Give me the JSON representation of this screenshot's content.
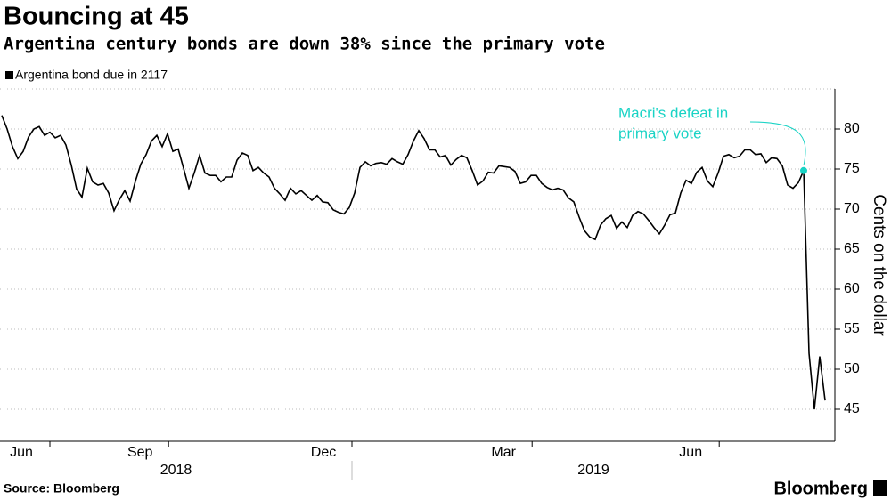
{
  "chart_data": {
    "type": "line",
    "title": "Bouncing at 45",
    "subtitle": "Argentina century bonds are down 38% since the primary vote",
    "y_label": "Cents on the dollar",
    "source": "Source: Bloomberg",
    "brand": "Bloomberg",
    "annotation": {
      "lines": [
        "Macri's defeat in",
        "primary vote"
      ],
      "color": "#19d3c5"
    },
    "year_labels": [
      "2018",
      "2019"
    ],
    "series": [
      {
        "name": "Argentina bond due in 2117",
        "color": "#000000",
        "values": [
          81.7,
          80,
          77.8,
          76.3,
          77.2,
          79,
          80,
          80.3,
          79.2,
          79.6,
          78.9,
          79.2,
          78,
          75.5,
          72.5,
          71.5,
          75.1,
          73.4,
          73,
          73.2,
          72,
          69.8,
          71.2,
          72.3,
          71,
          73.5,
          75.6,
          76.8,
          78.5,
          79.2,
          77.8,
          79.4,
          77.2,
          77.5,
          75.1,
          72.6,
          74.5,
          76.7,
          74.5,
          74.2,
          74.2,
          73.4,
          74,
          74,
          76.1,
          77,
          76.7,
          74.8,
          75.2,
          74.5,
          74,
          72.6,
          71.9,
          71.1,
          72.6,
          71.9,
          72.3,
          71.7,
          71.1,
          71.7,
          70.9,
          70.8,
          69.9,
          69.6,
          69.4,
          70.2,
          72,
          75.2,
          75.9,
          75.4,
          75.7,
          75.8,
          75.6,
          76.3,
          75.9,
          75.6,
          76.8,
          78.5,
          79.8,
          78.8,
          77.4,
          77.4,
          76.5,
          76.7,
          75.5,
          76.2,
          76.7,
          76.4,
          74.8,
          73,
          73.5,
          74.6,
          74.5,
          75.4,
          75.3,
          75.2,
          74.7,
          73.2,
          73.4,
          74.2,
          74.2,
          73.2,
          72.7,
          72.4,
          72.6,
          72.4,
          71.4,
          70.9,
          69,
          67.3,
          66.5,
          66.2,
          68,
          68.8,
          69.2,
          67.6,
          68.4,
          67.7,
          69.2,
          69.7,
          69.4,
          68.6,
          67.7,
          66.9,
          68,
          69.3,
          69.5,
          72,
          73.6,
          73.2,
          74.6,
          75.2,
          73.5,
          72.8,
          74.5,
          76.6,
          76.8,
          76.4,
          76.6,
          77.4,
          77.4,
          76.8,
          76.9,
          75.8,
          76.4,
          76.3,
          75.4,
          73,
          72.6,
          73.3,
          74.8,
          52,
          45,
          51.6,
          46.1
        ]
      }
    ],
    "xlim": [
      0,
      155
    ],
    "xticks": [
      {
        "value": 9,
        "label": "Jun"
      },
      {
        "value": 31.2,
        "label": "Sep"
      },
      {
        "value": 65.5,
        "label": "Dec"
      },
      {
        "value": 99.2,
        "label": "Mar"
      },
      {
        "value": 134.2,
        "label": "Jun"
      }
    ],
    "ylim": [
      41,
      85
    ],
    "yticks": [
      45,
      50,
      55,
      60,
      65,
      70,
      75,
      80
    ],
    "grid": true
  }
}
